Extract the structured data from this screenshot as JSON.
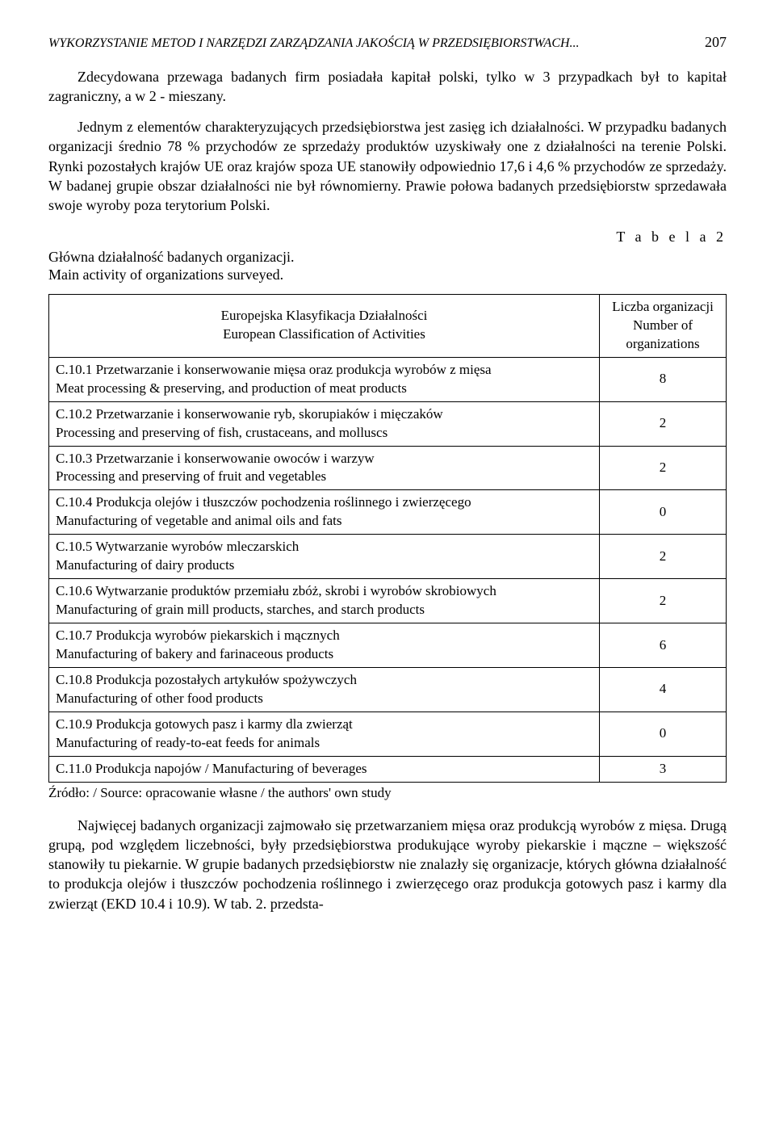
{
  "header": {
    "running_title": "WYKORZYSTANIE METOD I NARZĘDZI ZARZĄDZANIA JAKOŚCIĄ W PRZEDSIĘBIORSTWACH...",
    "page_number": "207"
  },
  "paragraphs": {
    "p1": "Zdecydowana przewaga badanych firm posiadała kapitał polski, tylko w 3 przypadkach był to kapitał zagraniczny, a w 2 - mieszany.",
    "p2": "Jednym z elementów charakteryzujących przedsiębiorstwa jest zasięg ich działalności. W przypadku badanych organizacji średnio 78 % przychodów ze sprzedaży produktów uzyskiwały one z działalności na terenie Polski. Rynki pozostałych krajów UE oraz krajów spoza UE stanowiły odpowiednio 17,6 i 4,6 % przychodów ze sprzedaży. W badanej grupie obszar działalności nie był równomierny. Prawie połowa badanych przedsiębiorstw sprzedawała swoje wyroby poza terytorium Polski.",
    "p3": "Najwięcej badanych organizacji zajmowało się przetwarzaniem mięsa oraz produkcją wyrobów z mięsa. Drugą grupą, pod względem liczebności, były przedsiębiorstwa produkujące wyroby piekarskie i mączne – większość stanowiły tu piekarnie. W grupie badanych przedsiębiorstw nie znalazły się organizacje, których główna działalność to produkcja olejów i tłuszczów pochodzenia roślinnego i zwierzęcego oraz produkcja gotowych pasz i karmy dla zwierząt (EKD 10.4 i 10.9). W tab. 2. przedsta-"
  },
  "table_caption": {
    "label": "T a b e l a  2",
    "pl": "Główna działalność badanych organizacji.",
    "en": "Main activity of organizations surveyed."
  },
  "table": {
    "header_left_pl": "Europejska Klasyfikacja Działalności",
    "header_left_en": "European Classification of Activities",
    "header_right_pl": "Liczba organizacji",
    "header_right_en": "Number of organizations",
    "rows": [
      {
        "activity_pl": "C.10.1 Przetwarzanie i konserwowanie mięsa oraz produkcja wyrobów z mięsa",
        "activity_en": "Meat processing & preserving, and production of meat products",
        "count": "8"
      },
      {
        "activity_pl": "C.10.2 Przetwarzanie i konserwowanie ryb, skorupiaków i mięczaków",
        "activity_en": "Processing and preserving of fish, crustaceans, and molluscs",
        "count": "2"
      },
      {
        "activity_pl": "C.10.3 Przetwarzanie i konserwowanie owoców i warzyw",
        "activity_en": "Processing and preserving of fruit and vegetables",
        "count": "2"
      },
      {
        "activity_pl": "C.10.4 Produkcja olejów i tłuszczów pochodzenia roślinnego i zwierzęcego",
        "activity_en": "Manufacturing of vegetable and animal oils and fats",
        "count": "0"
      },
      {
        "activity_pl": "C.10.5 Wytwarzanie wyrobów mleczarskich",
        "activity_en": "Manufacturing of dairy products",
        "count": "2"
      },
      {
        "activity_pl": "C.10.6 Wytwarzanie produktów przemiału zbóż, skrobi i wyrobów skrobiowych",
        "activity_en": "Manufacturing of grain mill products, starches, and starch products",
        "count": "2"
      },
      {
        "activity_pl": "C.10.7 Produkcja wyrobów piekarskich i mącznych",
        "activity_en": "Manufacturing of bakery and farinaceous products",
        "count": "6"
      },
      {
        "activity_pl": "C.10.8 Produkcja pozostałych artykułów spożywczych",
        "activity_en": "Manufacturing of other food products",
        "count": "4"
      },
      {
        "activity_pl": "C.10.9 Produkcja gotowych pasz i karmy dla zwierząt",
        "activity_en": "Manufacturing of ready-to-eat feeds for animals",
        "count": "0"
      },
      {
        "activity_pl": "C.11.0 Produkcja napojów / Manufacturing of beverages",
        "activity_en": "",
        "count": "3"
      }
    ]
  },
  "source": "Źródło: / Source: opracowanie własne / the authors' own study"
}
